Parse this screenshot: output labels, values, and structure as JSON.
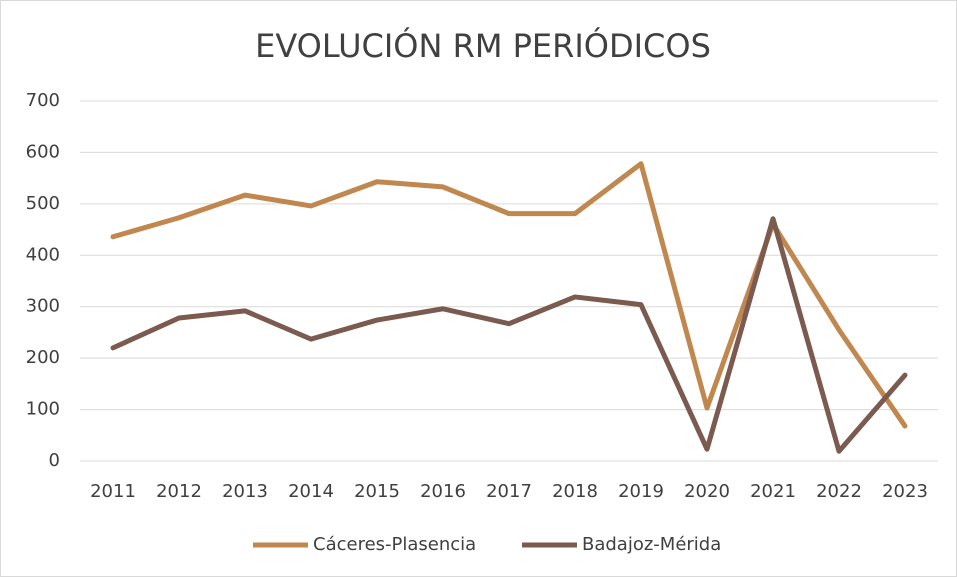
{
  "chart_data": {
    "type": "line",
    "title": "EVOLUCIÓN RM PERIÓDICOS",
    "categories": [
      "2011",
      "2012",
      "2013",
      "2014",
      "2015",
      "2016",
      "2017",
      "2018",
      "2019",
      "2020",
      "2021",
      "2022",
      "2023"
    ],
    "series": [
      {
        "name": "Cáceres-Plasencia",
        "color": "#c0874e",
        "values": [
          436,
          473,
          517,
          496,
          543,
          533,
          481,
          481,
          578,
          103,
          461,
          255,
          68
        ]
      },
      {
        "name": "Badajoz-Mérida",
        "color": "#7b5a4f",
        "values": [
          220,
          278,
          292,
          237,
          274,
          296,
          267,
          319,
          304,
          23,
          471,
          19,
          167
        ]
      }
    ],
    "ylim": [
      0,
      700
    ],
    "yticks": [
      0,
      100,
      200,
      300,
      400,
      500,
      600,
      700
    ],
    "grid": true,
    "legend": "bottom"
  }
}
